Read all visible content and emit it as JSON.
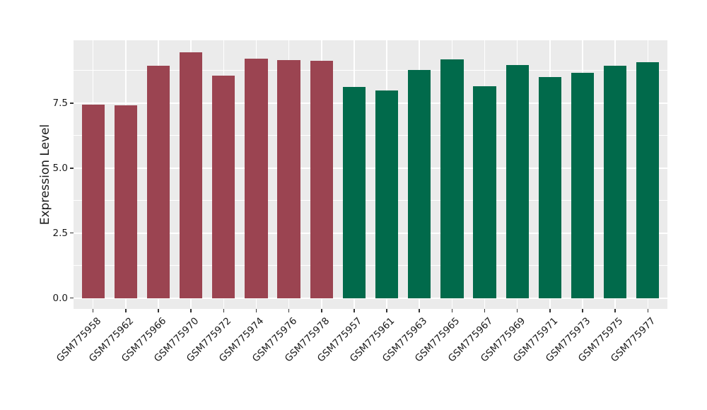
{
  "chart_data": {
    "type": "bar",
    "ylabel": "Expression Level",
    "y_tick_labels": [
      "0.0",
      "2.5",
      "5.0",
      "7.5"
    ],
    "y_major_ticks": [
      0,
      2.5,
      5,
      7.5
    ],
    "y_minor_gridlines": [
      1.25,
      3.75,
      6.25,
      8.75
    ],
    "ylim": [
      -0.42,
      9.92
    ],
    "grid": "white major+minor horizontal lines and vertical category lines on gray panel",
    "legend_position": "none",
    "categories": [
      "GSM775958",
      "GSM775962",
      "GSM775966",
      "GSM775970",
      "GSM775972",
      "GSM775974",
      "GSM775976",
      "GSM775978",
      "GSM775957",
      "GSM775961",
      "GSM775963",
      "GSM775965",
      "GSM775967",
      "GSM775969",
      "GSM775971",
      "GSM775973",
      "GSM775975",
      "GSM775977"
    ],
    "bars": [
      {
        "label": "GSM775958",
        "value": 7.45,
        "group": "maroon"
      },
      {
        "label": "GSM775962",
        "value": 7.43,
        "group": "maroon"
      },
      {
        "label": "GSM775966",
        "value": 8.94,
        "group": "maroon"
      },
      {
        "label": "GSM775970",
        "value": 9.47,
        "group": "maroon"
      },
      {
        "label": "GSM775972",
        "value": 8.56,
        "group": "maroon"
      },
      {
        "label": "GSM775974",
        "value": 9.22,
        "group": "maroon"
      },
      {
        "label": "GSM775976",
        "value": 9.15,
        "group": "maroon"
      },
      {
        "label": "GSM775978",
        "value": 9.14,
        "group": "maroon"
      },
      {
        "label": "GSM775957",
        "value": 8.13,
        "group": "green"
      },
      {
        "label": "GSM775961",
        "value": 7.98,
        "group": "green"
      },
      {
        "label": "GSM775963",
        "value": 8.78,
        "group": "green"
      },
      {
        "label": "GSM775965",
        "value": 9.18,
        "group": "green"
      },
      {
        "label": "GSM775967",
        "value": 8.14,
        "group": "green"
      },
      {
        "label": "GSM775969",
        "value": 8.97,
        "group": "green"
      },
      {
        "label": "GSM775971",
        "value": 8.51,
        "group": "green"
      },
      {
        "label": "GSM775973",
        "value": 8.66,
        "group": "green"
      },
      {
        "label": "GSM775975",
        "value": 8.95,
        "group": "green"
      },
      {
        "label": "GSM775977",
        "value": 9.08,
        "group": "green"
      }
    ],
    "group_colors": {
      "maroon": "#9B4451",
      "green": "#016A4B"
    }
  },
  "style": {
    "panel_bg": "#EBEBEB",
    "grid_color": "#FFFFFF",
    "text_color": "#1A1A1A",
    "tick_color": "#333333",
    "figure_bg": "#FFFFFF"
  }
}
